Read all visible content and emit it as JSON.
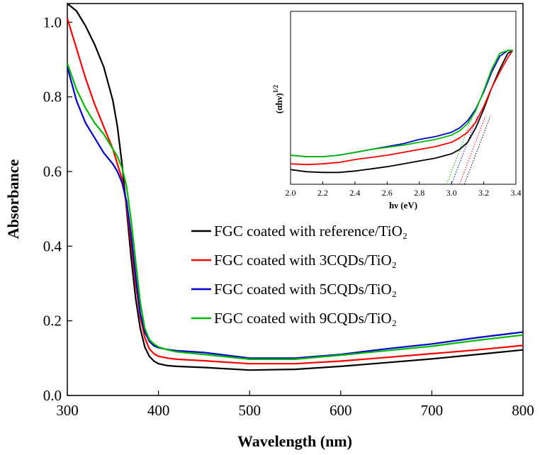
{
  "chart_data": [
    {
      "type": "line",
      "id": "main",
      "xlabel": "Wavelength (nm)",
      "ylabel": "Absorbance",
      "xlim": [
        300,
        800
      ],
      "ylim": [
        0,
        1.05
      ],
      "xticks": [
        "300",
        "400",
        "500",
        "600",
        "700",
        "800"
      ],
      "yticks": [
        "0.0",
        "0.2",
        "0.4",
        "0.6",
        "0.8",
        "1.0"
      ],
      "legend_position": "lower-right",
      "series": [
        {
          "name": "FGC coated with reference/TiO₂",
          "color": "#000000",
          "x": [
            300,
            310,
            320,
            330,
            340,
            350,
            355,
            360,
            365,
            370,
            375,
            380,
            385,
            390,
            395,
            400,
            410,
            420,
            450,
            500,
            550,
            600,
            650,
            700,
            750,
            800
          ],
          "y": [
            1.05,
            1.03,
            0.99,
            0.94,
            0.88,
            0.79,
            0.72,
            0.62,
            0.5,
            0.37,
            0.26,
            0.18,
            0.13,
            0.105,
            0.092,
            0.085,
            0.08,
            0.078,
            0.075,
            0.068,
            0.07,
            0.078,
            0.088,
            0.098,
            0.11,
            0.122
          ]
        },
        {
          "name": "FGC coated with 3CQDs/TiO₂",
          "color": "#ff0000",
          "x": [
            300,
            310,
            320,
            330,
            340,
            350,
            355,
            360,
            365,
            370,
            375,
            380,
            385,
            390,
            395,
            400,
            410,
            420,
            450,
            500,
            550,
            600,
            650,
            700,
            750,
            800
          ],
          "y": [
            1.01,
            0.93,
            0.85,
            0.78,
            0.72,
            0.66,
            0.62,
            0.58,
            0.51,
            0.41,
            0.3,
            0.21,
            0.155,
            0.125,
            0.112,
            0.105,
            0.1,
            0.097,
            0.093,
            0.085,
            0.085,
            0.092,
            0.102,
            0.112,
            0.122,
            0.134
          ]
        },
        {
          "name": "FGC coated with 5CQDs/TiO₂",
          "color": "#0000cc",
          "x": [
            300,
            310,
            320,
            330,
            340,
            350,
            355,
            360,
            365,
            370,
            375,
            380,
            385,
            390,
            395,
            400,
            410,
            420,
            450,
            500,
            550,
            600,
            650,
            700,
            750,
            800
          ],
          "y": [
            0.88,
            0.79,
            0.73,
            0.69,
            0.65,
            0.62,
            0.6,
            0.57,
            0.52,
            0.43,
            0.32,
            0.22,
            0.17,
            0.145,
            0.133,
            0.128,
            0.123,
            0.12,
            0.115,
            0.1,
            0.1,
            0.11,
            0.125,
            0.138,
            0.155,
            0.17
          ]
        },
        {
          "name": "FGC coated with 9CQDs/TiO₂",
          "color": "#00bb00",
          "x": [
            300,
            310,
            320,
            330,
            340,
            350,
            355,
            360,
            365,
            370,
            375,
            380,
            385,
            390,
            395,
            400,
            410,
            420,
            450,
            500,
            550,
            600,
            650,
            700,
            750,
            800
          ],
          "y": [
            0.89,
            0.82,
            0.77,
            0.73,
            0.7,
            0.66,
            0.64,
            0.61,
            0.56,
            0.47,
            0.36,
            0.25,
            0.18,
            0.15,
            0.138,
            0.13,
            0.122,
            0.117,
            0.11,
            0.097,
            0.097,
            0.108,
            0.12,
            0.132,
            0.148,
            0.162
          ]
        }
      ]
    },
    {
      "type": "line",
      "id": "inset",
      "xlabel": "hν (eV)",
      "ylabel": "(αhν)",
      "ylabel_superscript": "1/2",
      "xlim": [
        2.0,
        3.4
      ],
      "ylim": [
        0,
        1
      ],
      "xticks": [
        "2.0",
        "2.2",
        "2.4",
        "2.6",
        "2.8",
        "3.0",
        "3.2",
        "3.4"
      ],
      "series": [
        {
          "name": "reference",
          "color": "#000000",
          "x": [
            2.0,
            2.1,
            2.2,
            2.3,
            2.4,
            2.5,
            2.6,
            2.7,
            2.8,
            2.9,
            3.0,
            3.05,
            3.1,
            3.15,
            3.2,
            3.25,
            3.3,
            3.35,
            3.38
          ],
          "y": [
            0.03,
            0.015,
            0.01,
            0.01,
            0.02,
            0.035,
            0.05,
            0.07,
            0.09,
            0.11,
            0.14,
            0.17,
            0.22,
            0.32,
            0.45,
            0.6,
            0.73,
            0.84,
            0.86
          ],
          "tangent_intercept": 3.08
        },
        {
          "name": "3CQDs",
          "color": "#ff0000",
          "x": [
            2.0,
            2.1,
            2.2,
            2.3,
            2.4,
            2.5,
            2.6,
            2.7,
            2.8,
            2.9,
            3.0,
            3.05,
            3.1,
            3.15,
            3.2,
            3.25,
            3.3,
            3.35,
            3.38
          ],
          "y": [
            0.07,
            0.065,
            0.07,
            0.08,
            0.1,
            0.115,
            0.13,
            0.15,
            0.17,
            0.19,
            0.22,
            0.25,
            0.29,
            0.36,
            0.47,
            0.6,
            0.71,
            0.81,
            0.86
          ],
          "tangent_intercept": 3.05
        },
        {
          "name": "5CQDs",
          "color": "#0000cc",
          "x": [
            2.0,
            2.1,
            2.2,
            2.3,
            2.4,
            2.5,
            2.6,
            2.7,
            2.8,
            2.9,
            3.0,
            3.05,
            3.1,
            3.15,
            3.2,
            3.25,
            3.3,
            3.35,
            3.38
          ],
          "y": [
            0.13,
            0.12,
            0.12,
            0.13,
            0.15,
            0.17,
            0.19,
            0.21,
            0.24,
            0.26,
            0.29,
            0.32,
            0.37,
            0.45,
            0.57,
            0.71,
            0.82,
            0.86,
            0.86
          ],
          "tangent_intercept": 3.0
        },
        {
          "name": "9CQDs",
          "color": "#00bb00",
          "x": [
            2.0,
            2.1,
            2.2,
            2.3,
            2.4,
            2.5,
            2.6,
            2.7,
            2.8,
            2.9,
            3.0,
            3.05,
            3.1,
            3.15,
            3.2,
            3.25,
            3.3,
            3.35,
            3.38
          ],
          "y": [
            0.13,
            0.12,
            0.12,
            0.13,
            0.15,
            0.17,
            0.185,
            0.2,
            0.22,
            0.24,
            0.27,
            0.3,
            0.35,
            0.44,
            0.58,
            0.73,
            0.84,
            0.86,
            0.86
          ],
          "tangent_intercept": 2.97
        }
      ]
    }
  ]
}
